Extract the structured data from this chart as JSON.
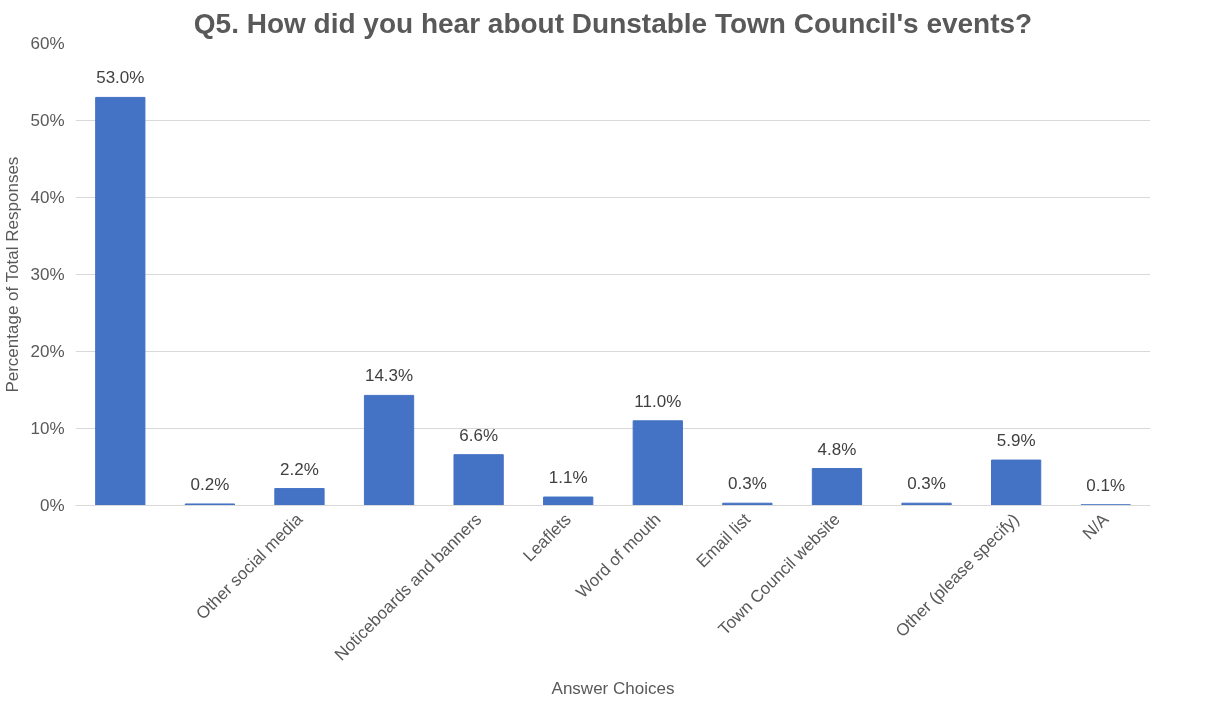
{
  "chart_data": {
    "type": "bar",
    "title": "Q5. How did you hear about Dunstable Town Council's events?",
    "xlabel": "Answer Choices",
    "ylabel": "Percentage of Total Responses",
    "categories": [
      null,
      null,
      "Other social media",
      null,
      "Noticeboards and banners",
      "Leaflets",
      "Word of mouth",
      "Email list",
      "Town Council website",
      null,
      "Other (please specify)",
      "N/A"
    ],
    "values": [
      53.0,
      0.2,
      2.2,
      14.3,
      6.6,
      1.1,
      11.0,
      0.3,
      4.8,
      0.3,
      5.9,
      0.1
    ],
    "value_labels": [
      "53.0%",
      "0.2%",
      "2.2%",
      "14.3%",
      "6.6%",
      "1.1%",
      "11.0%",
      "0.3%",
      "4.8%",
      "0.3%",
      "5.9%",
      "0.1%"
    ],
    "color": "#4472c4",
    "ylim": [
      0,
      60
    ],
    "yticks": [
      {
        "value": 0,
        "label": "0%"
      },
      {
        "value": 10,
        "label": "10%"
      },
      {
        "value": 20,
        "label": "20%"
      },
      {
        "value": 30,
        "label": "30%"
      },
      {
        "value": 40,
        "label": "40%"
      },
      {
        "value": 50,
        "label": "50%"
      },
      {
        "value": 60,
        "label": "60%"
      }
    ],
    "grid": "y"
  }
}
